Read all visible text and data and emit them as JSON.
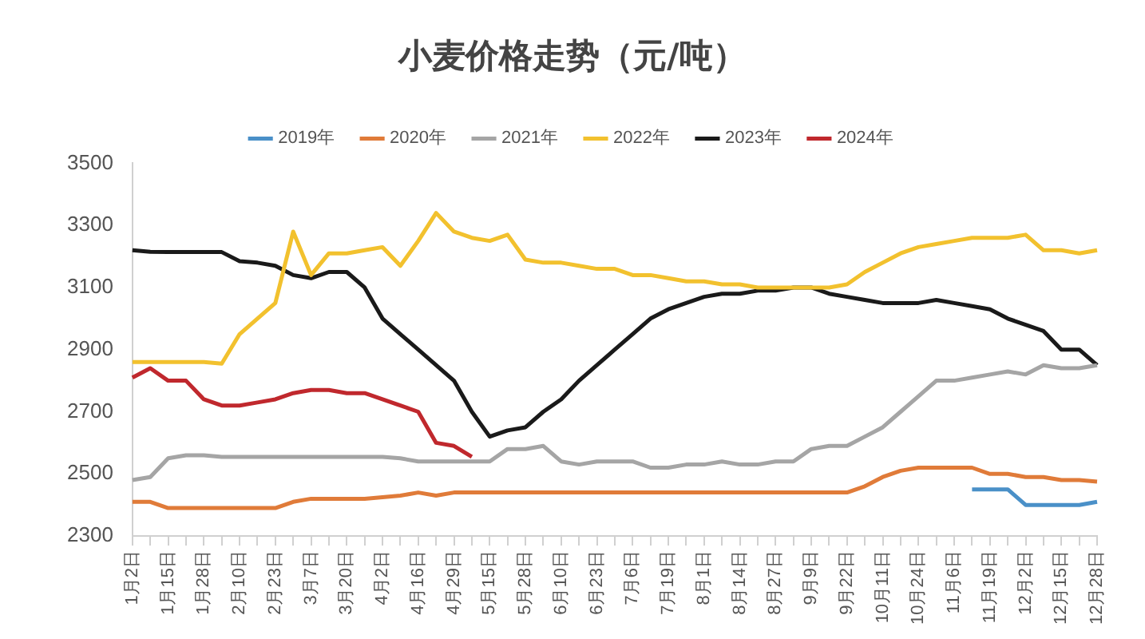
{
  "chart_data": {
    "type": "line",
    "title": "小麦价格走势（元/吨）",
    "categories": [
      "1月2日",
      null,
      "1月15日",
      null,
      "1月28日",
      null,
      "2月10日",
      null,
      "2月23日",
      null,
      "3月7日",
      null,
      "3月20日",
      null,
      "4月2日",
      null,
      "4月16日",
      null,
      "4月29日",
      null,
      "5月15日",
      null,
      "5月28日",
      null,
      "6月10日",
      null,
      "6月23日",
      null,
      "7月6日",
      null,
      "7月19日",
      null,
      "8月1日",
      null,
      "8月14日",
      null,
      "8月27日",
      null,
      "9月9日",
      null,
      "9月22日",
      null,
      "10月11日",
      null,
      "10月24日",
      null,
      "11月6日",
      null,
      "11月19日",
      null,
      "12月2日",
      null,
      "12月15日",
      null,
      "12月28日"
    ],
    "series": [
      {
        "name": "2019年",
        "color": "#4a90c8",
        "values": [
          null,
          null,
          null,
          null,
          null,
          null,
          null,
          null,
          null,
          null,
          null,
          null,
          null,
          null,
          null,
          null,
          null,
          null,
          null,
          null,
          null,
          null,
          null,
          null,
          null,
          null,
          null,
          null,
          null,
          null,
          null,
          null,
          null,
          null,
          null,
          null,
          null,
          null,
          null,
          null,
          null,
          null,
          null,
          null,
          null,
          null,
          null,
          2450,
          2450,
          2450,
          2400,
          2400,
          2400,
          2400,
          2410
        ]
      },
      {
        "name": "2020年",
        "color": "#e07b39",
        "values": [
          2410,
          2410,
          2390,
          2390,
          2390,
          2390,
          2390,
          2390,
          2390,
          2410,
          2420,
          2420,
          2420,
          2420,
          2425,
          2430,
          2440,
          2430,
          2440,
          2440,
          2440,
          2440,
          2440,
          2440,
          2440,
          2440,
          2440,
          2440,
          2440,
          2440,
          2440,
          2440,
          2440,
          2440,
          2440,
          2440,
          2440,
          2440,
          2440,
          2440,
          2440,
          2460,
          2490,
          2510,
          2520,
          2520,
          2520,
          2520,
          2500,
          2500,
          2490,
          2490,
          2480,
          2480,
          2475
        ]
      },
      {
        "name": "2021年",
        "color": "#a5a5a5",
        "values": [
          2480,
          2490,
          2550,
          2560,
          2560,
          2555,
          2555,
          2555,
          2555,
          2555,
          2555,
          2555,
          2555,
          2555,
          2555,
          2550,
          2540,
          2540,
          2540,
          2540,
          2540,
          2580,
          2580,
          2590,
          2540,
          2530,
          2540,
          2540,
          2540,
          2520,
          2520,
          2530,
          2530,
          2540,
          2530,
          2530,
          2540,
          2540,
          2580,
          2590,
          2590,
          2620,
          2650,
          2700,
          2750,
          2800,
          2800,
          2810,
          2820,
          2830,
          2820,
          2850,
          2840,
          2840,
          2850
        ]
      },
      {
        "name": "2022年",
        "color": "#f2c12e",
        "values": [
          2860,
          2860,
          2860,
          2860,
          2860,
          2855,
          2950,
          3000,
          3050,
          3280,
          3140,
          3210,
          3210,
          3220,
          3230,
          3170,
          3250,
          3340,
          3280,
          3260,
          3250,
          3270,
          3190,
          3180,
          3180,
          3170,
          3160,
          3160,
          3140,
          3140,
          3130,
          3120,
          3120,
          3110,
          3110,
          3100,
          3100,
          3100,
          3100,
          3100,
          3110,
          3150,
          3180,
          3210,
          3230,
          3240,
          3250,
          3260,
          3260,
          3260,
          3270,
          3220,
          3220,
          3210,
          3220
        ]
      },
      {
        "name": "2023年",
        "color": "#1a1a1a",
        "values": [
          3220,
          3215,
          3214,
          3214,
          3214,
          3214,
          3185,
          3180,
          3170,
          3140,
          3130,
          3150,
          3150,
          3100,
          3000,
          2950,
          2900,
          2850,
          2800,
          2700,
          2620,
          2640,
          2650,
          2700,
          2740,
          2800,
          2850,
          2900,
          2950,
          3000,
          3030,
          3050,
          3070,
          3080,
          3080,
          3090,
          3090,
          3100,
          3100,
          3080,
          3070,
          3060,
          3050,
          3050,
          3050,
          3060,
          3050,
          3040,
          3030,
          3000,
          2980,
          2960,
          2900,
          2900,
          2850
        ]
      },
      {
        "name": "2024年",
        "color": "#c0282d",
        "values": [
          2810,
          2840,
          2800,
          2800,
          2740,
          2720,
          2720,
          2730,
          2740,
          2760,
          2770,
          2770,
          2760,
          2760,
          2740,
          2720,
          2700,
          2600,
          2590,
          2555,
          null,
          null,
          null,
          null,
          null,
          null,
          null,
          null,
          null,
          null,
          null,
          null,
          null,
          null,
          null,
          null,
          null,
          null,
          null,
          null,
          null,
          null,
          null,
          null,
          null,
          null,
          null,
          null,
          null,
          null,
          null,
          null,
          null,
          null,
          null
        ]
      }
    ],
    "ylim": [
      2300,
      3500
    ],
    "yticks": [
      2300,
      2500,
      2700,
      2900,
      3100,
      3300,
      3500
    ],
    "legend": "top",
    "marker": "none"
  }
}
